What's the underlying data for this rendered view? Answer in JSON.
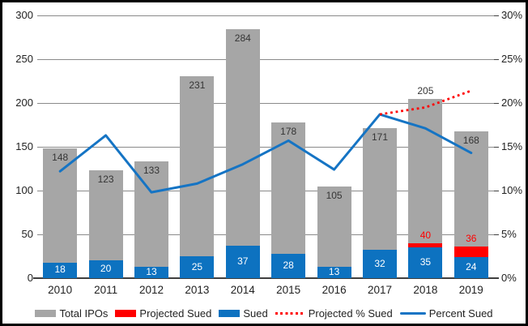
{
  "chart_data": {
    "type": "bar",
    "subtype": "combo-bar-line-dual-axis",
    "title": "",
    "categories": [
      "2010",
      "2011",
      "2012",
      "2013",
      "2014",
      "2015",
      "2016",
      "2017",
      "2018",
      "2019"
    ],
    "series": [
      {
        "name": "Total IPOs",
        "kind": "bar",
        "axis": "left",
        "color": "#a6a6a6",
        "label_color": "#353535",
        "values": [
          148,
          123,
          133,
          231,
          284,
          178,
          105,
          171,
          205,
          168
        ],
        "label_position": [
          "inside",
          "inside",
          "inside",
          "inside",
          "inside",
          "inside",
          "inside",
          "inside",
          "outside",
          "inside"
        ]
      },
      {
        "name": "Projected Sued",
        "kind": "bar-segment-stacked-on-sued",
        "axis": "left",
        "color": "#ff0000",
        "label_color": "#ff0000",
        "values": [
          null,
          null,
          null,
          null,
          null,
          null,
          null,
          null,
          40,
          36
        ]
      },
      {
        "name": "Sued",
        "kind": "bar",
        "axis": "left",
        "color": "#0d72c0",
        "label_color": "#ffffff",
        "values": [
          18,
          20,
          13,
          25,
          37,
          28,
          13,
          32,
          35,
          24
        ]
      },
      {
        "name": "Projected % Sued",
        "kind": "line",
        "style": "dotted",
        "axis": "right",
        "color": "#ff0000",
        "values": [
          null,
          null,
          null,
          null,
          null,
          null,
          null,
          18.7,
          19.5,
          21.4
        ]
      },
      {
        "name": "Percent Sued",
        "kind": "line",
        "style": "solid",
        "axis": "right",
        "color": "#1574c4",
        "values": [
          12.2,
          16.3,
          9.8,
          10.8,
          13.0,
          15.7,
          12.4,
          18.7,
          17.1,
          14.3
        ]
      }
    ],
    "left_axis": {
      "min": 0,
      "max": 300,
      "tick_step": 50,
      "tick_labels": [
        "0",
        "50",
        "100",
        "150",
        "200",
        "250",
        "300"
      ]
    },
    "right_axis": {
      "min": 0,
      "max": 30,
      "tick_step": 5,
      "tick_labels": [
        "0%",
        "5%",
        "10%",
        "15%",
        "20%",
        "25%",
        "30%"
      ]
    },
    "grid": "horizontal",
    "legend_position": "bottom"
  },
  "legend": {
    "items": [
      {
        "label": "Total IPOs",
        "swatch": "bar",
        "color": "#a6a6a6"
      },
      {
        "label": "Projected Sued",
        "swatch": "bar",
        "color": "#ff0000"
      },
      {
        "label": "Sued",
        "swatch": "bar",
        "color": "#0d72c0"
      },
      {
        "label": "Projected % Sued",
        "swatch": "dotted-line",
        "color": "#ff0000"
      },
      {
        "label": "Percent Sued",
        "swatch": "line",
        "color": "#1574c4"
      }
    ]
  }
}
